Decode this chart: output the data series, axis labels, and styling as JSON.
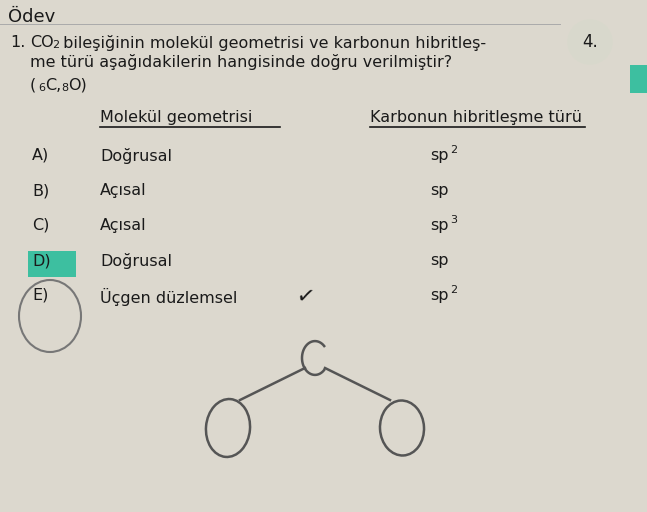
{
  "bg_color": "#dcd8ce",
  "title_num": "1.",
  "col1_header": "Molekül geometrisi",
  "col2_header": "Karbonun hibritleşme türü",
  "rows": [
    {
      "label": "A)",
      "col1": "Doğrusal",
      "col2": "sp2"
    },
    {
      "label": "B)",
      "col1": "Açısal",
      "col2": "sp"
    },
    {
      "label": "C)",
      "col1": "Açısal",
      "col2": "sp3"
    },
    {
      "label": "D)",
      "col1": "Doğrusal",
      "col2": "sp",
      "highlight": true
    },
    {
      "label": "E)",
      "col1": "Üçgen düzlemsel",
      "col2": "sp2",
      "circled": true
    }
  ],
  "text_color": "#1a1a1a",
  "highlight_color": "#3dbfa0",
  "corner_num": "4.",
  "corner_color": "#d8d8cc",
  "teal_rect_color": "#3dbfa0",
  "sketch_color": "#555555",
  "header_line_color": "#1a1a1a"
}
